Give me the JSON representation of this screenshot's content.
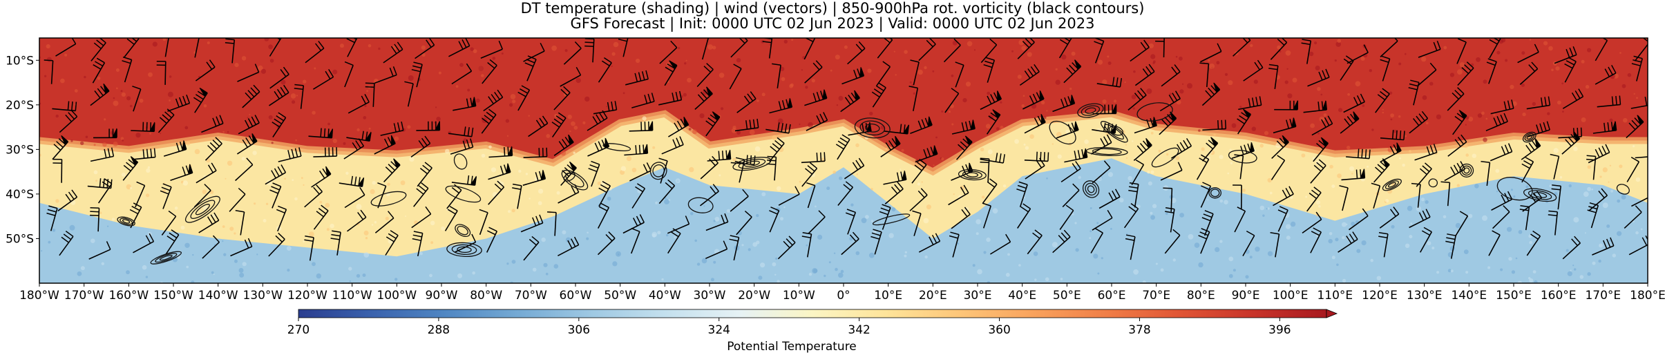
{
  "title": {
    "line1": "DT temperature (shading) | wind (vectors) | 850-900hPa rot. vorticity (black contours)",
    "line2": "GFS Forecast | Init: 0000 UTC 02 Jun 2023 | Valid: 0000 UTC 02 Jun 2023"
  },
  "map": {
    "lon_range": [
      -180,
      180
    ],
    "lat_range": [
      -60,
      -5
    ],
    "lon_ticks": [
      "180°W",
      "170°W",
      "160°W",
      "150°W",
      "140°W",
      "130°W",
      "120°W",
      "110°W",
      "100°W",
      "90°W",
      "80°W",
      "70°W",
      "60°W",
      "50°W",
      "40°W",
      "30°W",
      "20°W",
      "10°W",
      "0°",
      "10°E",
      "20°E",
      "30°E",
      "40°E",
      "50°E",
      "60°E",
      "70°E",
      "80°E",
      "90°E",
      "100°E",
      "110°E",
      "120°E",
      "130°E",
      "140°E",
      "150°E",
      "160°E",
      "170°E",
      "180°E"
    ],
    "lat_ticks": [
      "10°S",
      "20°S",
      "30°S",
      "40°S",
      "50°S"
    ],
    "lat_tick_values": [
      -10,
      -20,
      -30,
      -40,
      -50
    ],
    "warm_boundary_lat": [
      [
        -180,
        -28
      ],
      [
        -160,
        -30
      ],
      [
        -140,
        -27
      ],
      [
        -120,
        -30
      ],
      [
        -100,
        -31
      ],
      [
        -80,
        -29
      ],
      [
        -65,
        -33
      ],
      [
        -50,
        -24
      ],
      [
        -40,
        -22
      ],
      [
        -30,
        -29
      ],
      [
        -10,
        -26
      ],
      [
        0,
        -24
      ],
      [
        10,
        -30
      ],
      [
        20,
        -35
      ],
      [
        30,
        -29
      ],
      [
        40,
        -24
      ],
      [
        60,
        -22
      ],
      [
        70,
        -25
      ],
      [
        90,
        -27
      ],
      [
        110,
        -31
      ],
      [
        130,
        -30
      ],
      [
        150,
        -27
      ],
      [
        170,
        -28
      ],
      [
        180,
        -28
      ]
    ],
    "cold_boundary_lat": [
      [
        -180,
        -42
      ],
      [
        -160,
        -47
      ],
      [
        -140,
        -50
      ],
      [
        -120,
        -52
      ],
      [
        -100,
        -54
      ],
      [
        -80,
        -50
      ],
      [
        -65,
        -45
      ],
      [
        -50,
        -38
      ],
      [
        -40,
        -34
      ],
      [
        -30,
        -38
      ],
      [
        -10,
        -40
      ],
      [
        0,
        -34
      ],
      [
        10,
        -42
      ],
      [
        20,
        -50
      ],
      [
        30,
        -44
      ],
      [
        40,
        -36
      ],
      [
        60,
        -32
      ],
      [
        70,
        -36
      ],
      [
        90,
        -40
      ],
      [
        110,
        -46
      ],
      [
        130,
        -40
      ],
      [
        150,
        -36
      ],
      [
        170,
        -38
      ],
      [
        180,
        -42
      ]
    ]
  },
  "colorbar": {
    "label": "Potential Temperature",
    "min": 270,
    "max": 402,
    "ticks": [
      "270",
      "288",
      "306",
      "324",
      "342",
      "360",
      "378",
      "396"
    ],
    "tick_values": [
      270,
      288,
      306,
      324,
      342,
      360,
      378,
      396
    ],
    "extend": "max",
    "colors": [
      "#2a3d8f",
      "#3a62ad",
      "#5087c3",
      "#75aad4",
      "#9fc9e3",
      "#c4e0ee",
      "#e6f2f5",
      "#fbf5c4",
      "#fee49a",
      "#fdc679",
      "#f9a35d",
      "#f07e47",
      "#e05535",
      "#c8342a",
      "#a8191f"
    ]
  }
}
